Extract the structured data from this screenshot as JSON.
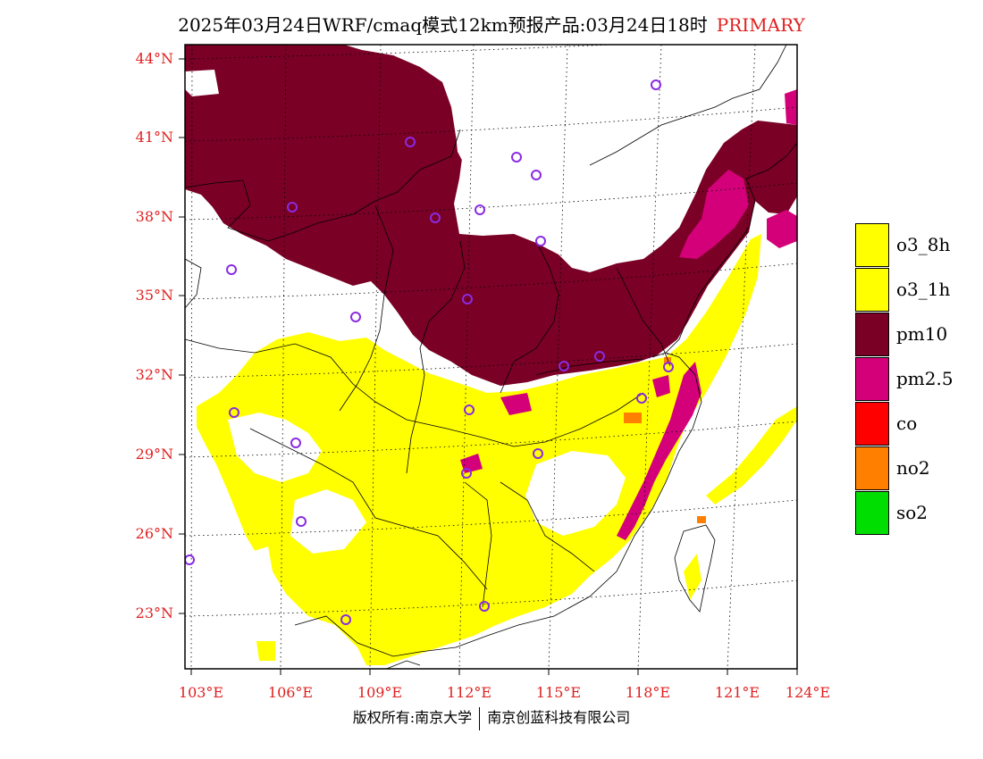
{
  "title": "2025年03月24日WRF/cmaq模式12km预报产品:03月24日18时",
  "title_tag": "PRIMARY",
  "colors": {
    "o3_8h": "#ffff00",
    "o3_1h": "#ffff00",
    "pm10": "#7a0026",
    "pm2_5": "#d4007a",
    "co": "#ff0000",
    "no2": "#ff8000",
    "so2": "#00dd00",
    "axis_label": "#e02020",
    "site_marker": "#8a2be2"
  },
  "legend": [
    {
      "label": "o3_8h",
      "color": "#ffff00"
    },
    {
      "label": "o3_1h",
      "color": "#ffff00"
    },
    {
      "label": "pm10",
      "color": "#7a0026"
    },
    {
      "label": "pm2.5",
      "color": "#d4007a"
    },
    {
      "label": "co",
      "color": "#ff0000"
    },
    {
      "label": "no2",
      "color": "#ff8000"
    },
    {
      "label": "so2",
      "color": "#00dd00"
    }
  ],
  "lat_labels": [
    "44°N",
    "41°N",
    "38°N",
    "35°N",
    "32°N",
    "29°N",
    "26°N",
    "23°N"
  ],
  "lon_labels": [
    "103°E",
    "106°E",
    "109°E",
    "112°E",
    "115°E",
    "118°E",
    "121°E",
    "124°E"
  ],
  "copyright_left": "版权所有:南京大学",
  "copyright_right": "南京创蓝科技有限公司"
}
